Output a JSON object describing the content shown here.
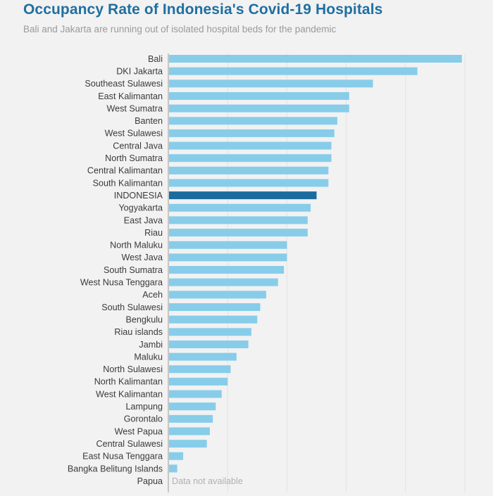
{
  "chart_data": {
    "type": "bar",
    "orientation": "horizontal",
    "title": "Occupancy Rate of Indonesia's Covid-19 Hospitals",
    "subtitle": "Bali and Jakarta are running out of isolated hospital beds for the pandemic",
    "categories": [
      "Bali",
      "DKI Jakarta",
      "Southeast Sulawesi",
      "East Kalimantan",
      "West Sumatra",
      "Banten",
      "West Sulawesi",
      "Central Java",
      "North Sumatra",
      "Central Kalimantan",
      "South Kalimantan",
      "INDONESIA",
      "Yogyakarta",
      "East Java",
      "Riau",
      "North Maluku",
      "West Java",
      "South Sumatra",
      "West Nusa Tenggara",
      "Aceh",
      "South Sulawesi",
      "Bengkulu",
      "Riau islands",
      "Jambi",
      "Maluku",
      "North Sulawesi",
      "North Kalimantan",
      "West Kalimantan",
      "Lampung",
      "Gorontalo",
      "West Papua",
      "Central Sulawesi",
      "East Nusa Tenggara",
      "Bangka Belitung Islands",
      "Papua"
    ],
    "values": [
      99,
      84,
      69,
      61,
      61,
      57,
      56,
      55,
      55,
      54,
      54,
      50,
      48,
      47,
      47,
      40,
      40,
      39,
      37,
      33,
      31,
      30,
      28,
      27,
      23,
      21,
      20,
      18,
      16,
      15,
      14,
      13,
      5,
      3,
      null
    ],
    "highlight_category": "INDONESIA",
    "missing_note": "Data not available",
    "xlim": [
      0,
      100
    ],
    "grid": true,
    "colors": {
      "bar": "#87cdea",
      "highlight": "#1a6b9e",
      "title": "#1f6fa0",
      "subtitle": "#9a9a9a"
    }
  }
}
